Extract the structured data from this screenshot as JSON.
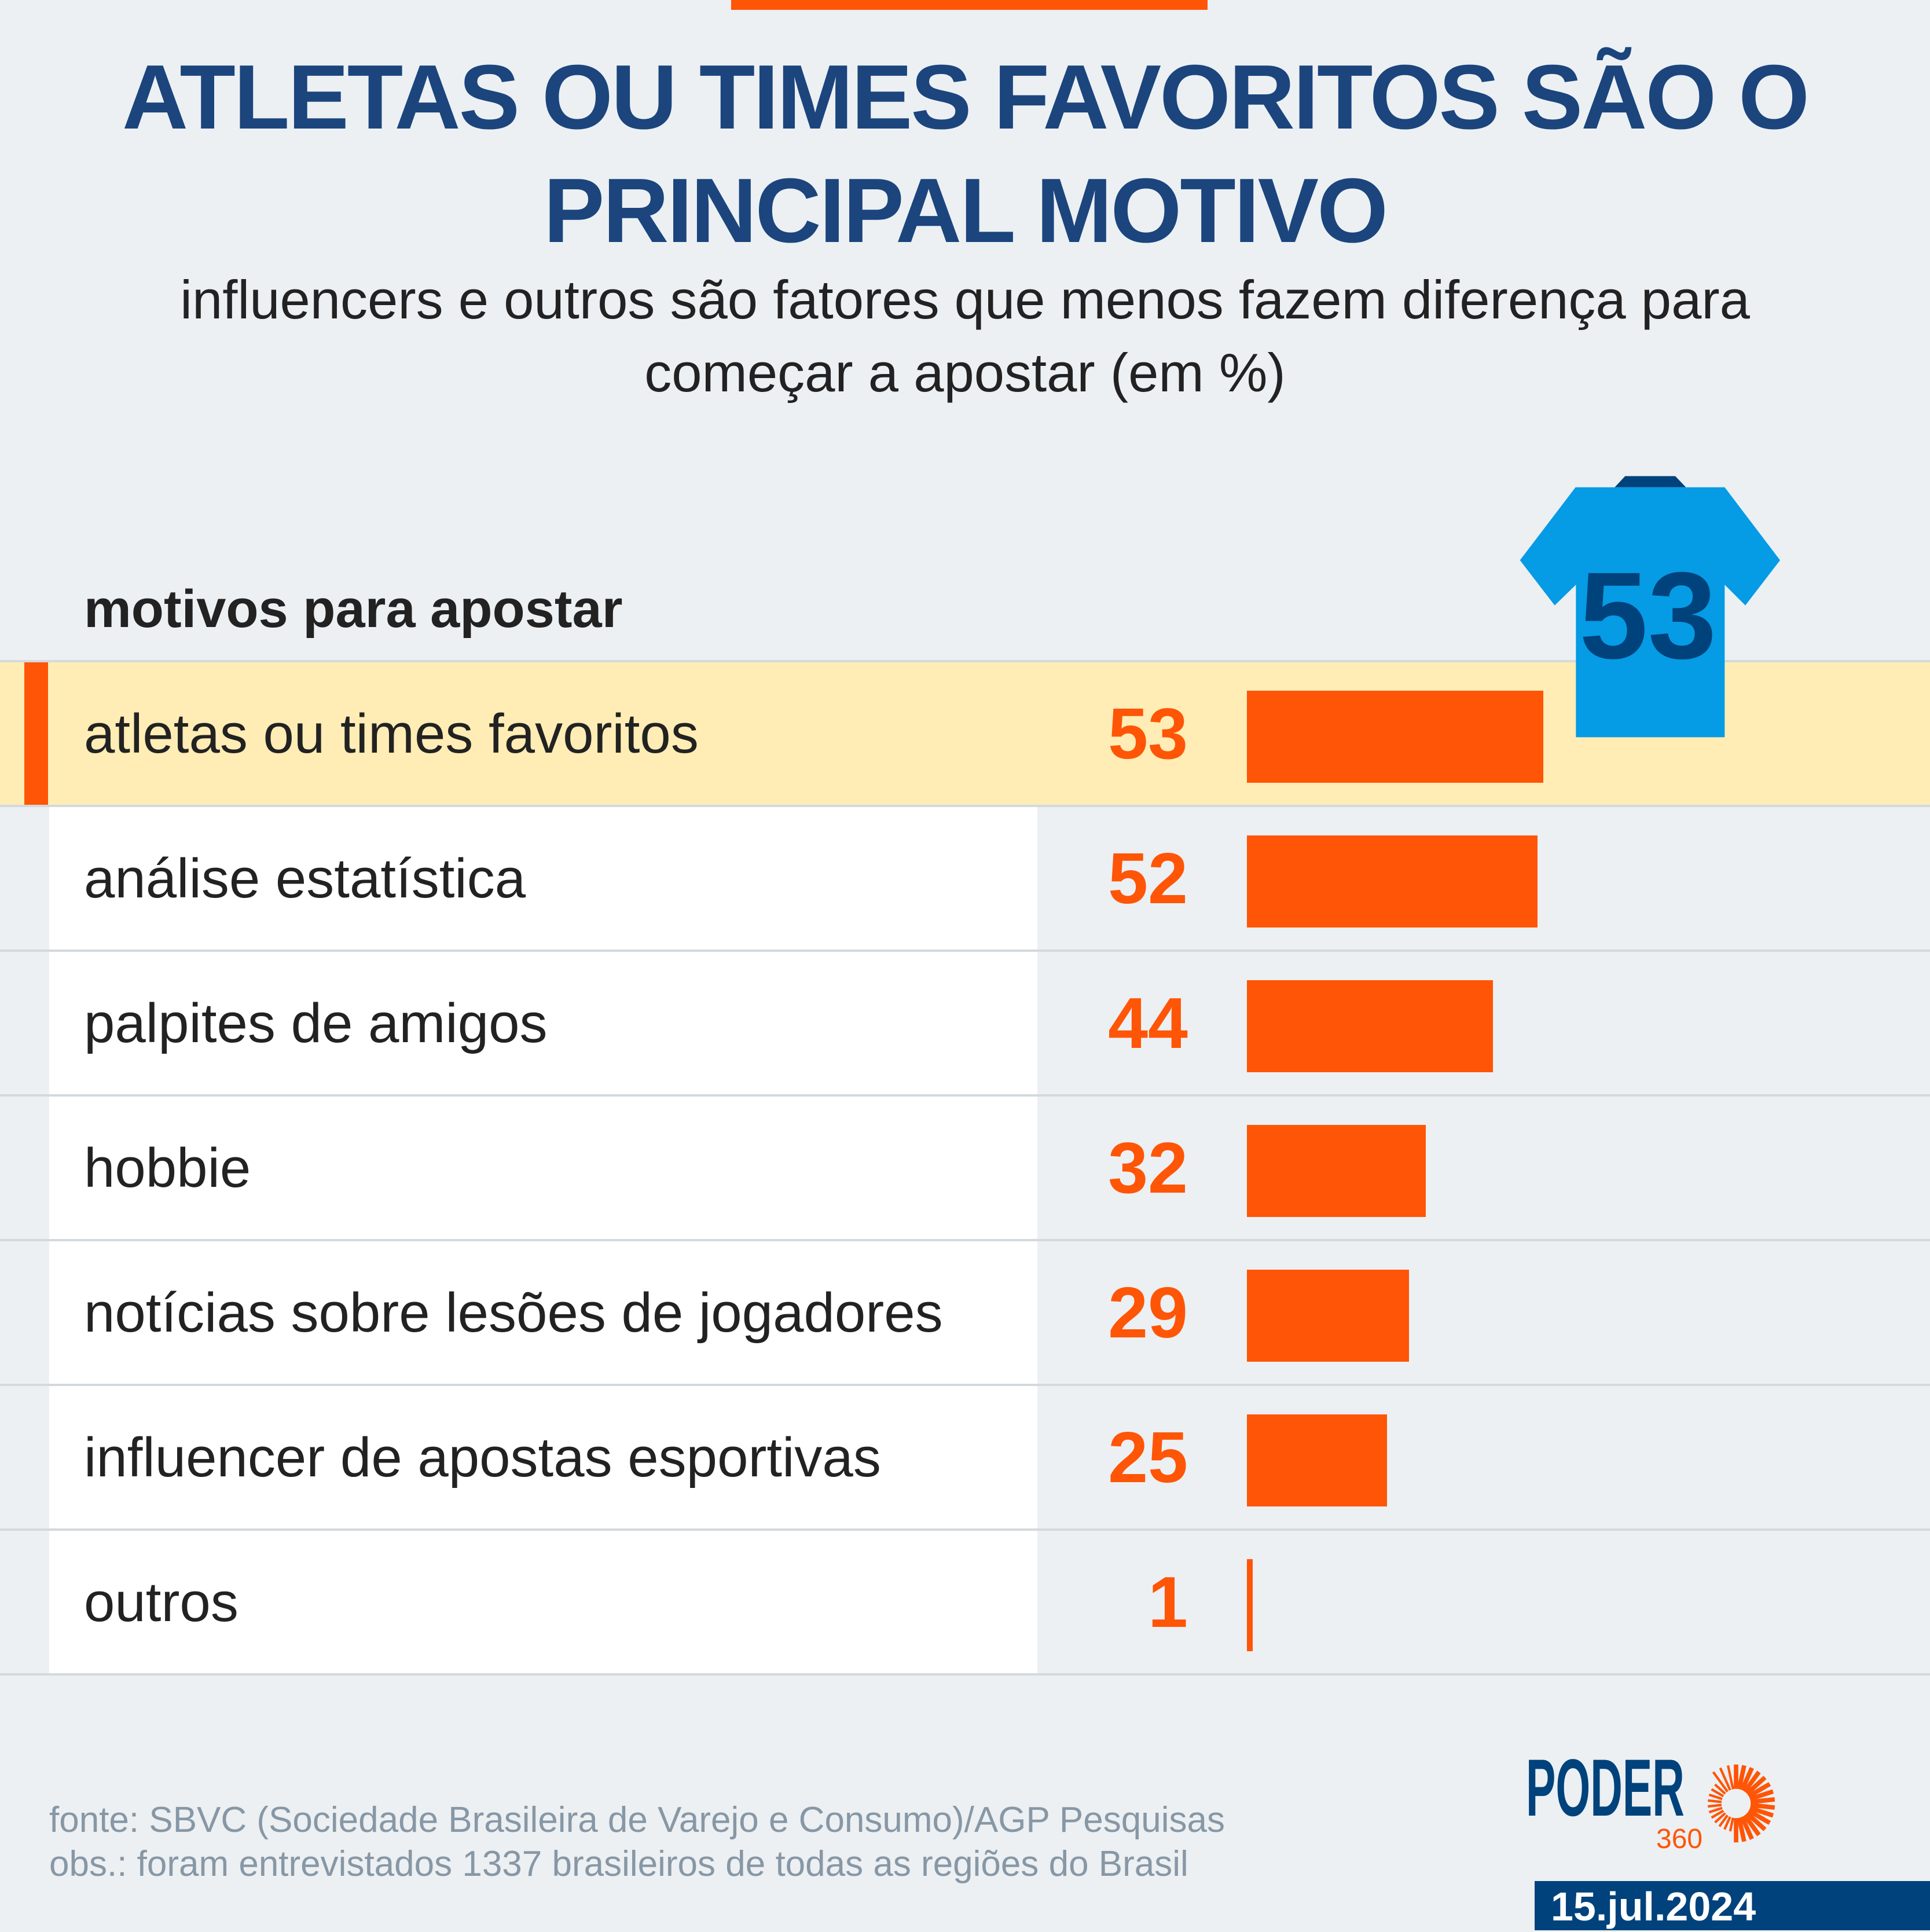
{
  "title": [
    "ATLETAS OU TIMES FAVORITOS SÃO O",
    "PRINCIPAL MOTIVO"
  ],
  "subtitle": [
    "influencers e outros são fatores que menos fazem diferença para",
    "começar a apostar (em %)"
  ],
  "colors": {
    "accent": "#ff5506",
    "title": "#1b457c",
    "highlight": "#ffedb5",
    "jersey": "#059be5",
    "jersey_dark": "#00427b"
  },
  "jersey": {
    "icon": "jersey-icon",
    "number": "53"
  },
  "chart_data": {
    "type": "bar",
    "orientation": "horizontal",
    "column_header": "motivos para apostar",
    "categories": [
      "atletas ou times favoritos",
      "análise estatística",
      "palpites de amigos",
      "hobbie",
      "notícias sobre lesões de jogadores",
      "influencer de apostas esportivas",
      "outros"
    ],
    "values": [
      53,
      52,
      44,
      32,
      29,
      25,
      1
    ],
    "value_labels": [
      "53",
      "52",
      "44",
      "32",
      "29",
      "25",
      "1"
    ],
    "highlighted": "atletas ou times favoritos",
    "unit": "%"
  },
  "footer": {
    "source": "fonte: SBVC (Sociedade Brasileira de Varejo e Consumo)/AGP Pesquisas",
    "note": "obs.: foram entrevistados 1337 brasileiros de todas as regiões do Brasil"
  },
  "logo": {
    "name": "PODER",
    "sub": "360"
  },
  "date": "15.jul.2024"
}
